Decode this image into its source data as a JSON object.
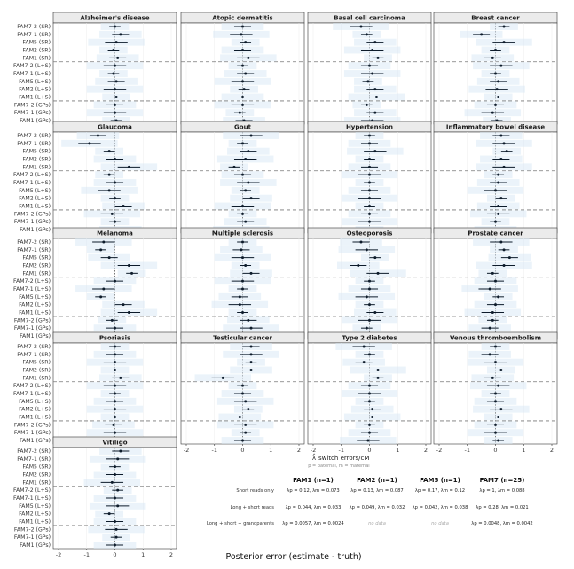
{
  "figure": {
    "x_axis_title": "Posterior error (estimate - truth)"
  },
  "chart_data": {
    "type": "scatter",
    "row_labels": [
      "FAM7-2 (SR)",
      "FAM7-1 (SR)",
      "FAM5 (SR)",
      "FAM2 (SR)",
      "FAM1 (SR)",
      "FAM7-2 (L+S)",
      "FAM7-1 (L+S)",
      "FAM5 (L+S)",
      "FAM2 (L+S)",
      "FAM1 (L+S)",
      "FAM7-2 (GPs)",
      "FAM7-1 (GPs)",
      "FAM1 (GPs)"
    ],
    "xlim": [
      -2,
      2
    ],
    "x_ticks": [
      "-2",
      "-1",
      "0",
      "1",
      "2"
    ],
    "panels": [
      {
        "title": "Alzheimer's disease",
        "values": [
          0.0,
          0.2,
          0.05,
          -0.05,
          0.1,
          0.0,
          -0.05,
          0.05,
          0.0,
          0.05,
          0.0,
          0.0,
          0.05
        ]
      },
      {
        "title": "Atopic dermatitis",
        "values": [
          0.0,
          -0.05,
          0.1,
          0.0,
          0.2,
          0.0,
          0.1,
          0.0,
          0.05,
          0.0,
          0.0,
          -0.1,
          0.05
        ]
      },
      {
        "title": "Basal cell carcinoma",
        "values": [
          -0.3,
          -0.1,
          0.2,
          0.1,
          0.3,
          0.0,
          0.1,
          -0.05,
          0.2,
          0.25,
          -0.1,
          0.2,
          0.1
        ]
      },
      {
        "title": "Breast cancer",
        "values": [
          0.3,
          -0.5,
          0.3,
          0.0,
          -0.1,
          0.2,
          0.0,
          0.1,
          0.05,
          0.1,
          0.0,
          -0.1,
          0.05
        ]
      },
      {
        "title": "Glaucoma",
        "values": [
          -0.6,
          -0.9,
          -0.2,
          0.0,
          0.5,
          -0.2,
          0.0,
          -0.2,
          0.0,
          0.3,
          -0.1,
          0.0,
          0.2
        ]
      },
      {
        "title": "Gout",
        "values": [
          0.3,
          0.0,
          0.2,
          0.1,
          -0.3,
          0.0,
          0.2,
          0.1,
          0.3,
          0.0,
          0.0,
          0.1,
          -0.05
        ]
      },
      {
        "title": "Hypertension",
        "values": [
          0.0,
          0.0,
          0.2,
          0.0,
          0.0,
          0.0,
          0.0,
          0.0,
          0.0,
          0.0,
          0.0,
          0.0,
          0.0
        ]
      },
      {
        "title": "Inflammatory bowel disease",
        "values": [
          0.2,
          0.3,
          0.4,
          0.2,
          0.3,
          0.1,
          0.1,
          0.0,
          0.2,
          0.1,
          0.1,
          0.0,
          0.0
        ]
      },
      {
        "title": "Melanoma",
        "values": [
          -0.4,
          -0.5,
          -0.2,
          0.5,
          0.6,
          0.0,
          -0.4,
          -0.5,
          0.3,
          0.5,
          -0.1,
          0.0,
          -0.1
        ]
      },
      {
        "title": "Multiple sclerosis",
        "values": [
          0.0,
          -0.05,
          0.0,
          0.1,
          0.3,
          0.0,
          0.0,
          -0.1,
          -0.1,
          0.0,
          0.2,
          0.3,
          0.3
        ]
      },
      {
        "title": "Osteoporosis",
        "values": [
          -0.3,
          -0.1,
          0.2,
          -0.4,
          0.3,
          0.0,
          0.0,
          -0.1,
          0.0,
          0.2,
          0.0,
          -0.1,
          0.05
        ]
      },
      {
        "title": "Prostate cancer",
        "values": [
          0.2,
          0.3,
          0.5,
          0.3,
          -0.1,
          0.0,
          -0.2,
          0.1,
          0.0,
          -0.1,
          -0.1,
          -0.2,
          -0.05
        ]
      },
      {
        "title": "Psoriasis",
        "values": [
          0.0,
          0.0,
          0.0,
          0.0,
          0.2,
          0.0,
          0.0,
          0.0,
          0.0,
          0.0,
          -0.05,
          0.0,
          -0.05
        ]
      },
      {
        "title": "Testicular cancer",
        "values": [
          0.3,
          0.3,
          0.3,
          0.3,
          -0.7,
          0.0,
          0.0,
          0.1,
          0.2,
          -0.1,
          0.1,
          0.1,
          0.0
        ]
      },
      {
        "title": "Type 2 diabetes",
        "values": [
          -0.2,
          0.0,
          -0.2,
          0.3,
          0.3,
          0.0,
          0.0,
          0.0,
          0.1,
          0.1,
          0.0,
          0.0,
          -0.05
        ]
      },
      {
        "title": "Venous thromboembolism",
        "values": [
          0.0,
          -0.2,
          0.0,
          0.2,
          -0.1,
          0.1,
          0.0,
          0.0,
          0.2,
          0.1,
          0.0,
          0.0,
          0.1
        ]
      },
      {
        "title": "Vitiligo",
        "values": [
          0.2,
          0.1,
          0.0,
          0.0,
          -0.1,
          0.1,
          0.0,
          0.1,
          -0.2,
          0.0,
          0.05,
          0.05,
          0.0
        ]
      }
    ]
  },
  "legend_table": {
    "x_title": "switch errors/cM",
    "subnote": "p = paternal, m = maternal",
    "columns": [
      "FAM1 (n=1)",
      "FAM2 (n=1)",
      "FAM5 (n=1)",
      "FAM7 (n=25)"
    ],
    "rows": [
      {
        "label": "Short reads only",
        "cells": [
          "λp = 0.12, λm = 0.073",
          "λp = 0.13, λm = 0.087",
          "λp = 0.17, λm = 0.12",
          "λp = 1, λm = 0.088"
        ]
      },
      {
        "label": "Long + short reads",
        "cells": [
          "λp = 0.044, λm = 0.033",
          "λp = 0.049, λm = 0.032",
          "λp = 0.042, λm = 0.038",
          "λp = 0.28, λm = 0.021"
        ]
      },
      {
        "label": "Long + short + grandparents",
        "cells": [
          "λp = 0.0057, λm = 0.0024",
          "no data",
          "no data",
          "λp = 0.0048, λm = 0.0042"
        ]
      }
    ]
  }
}
